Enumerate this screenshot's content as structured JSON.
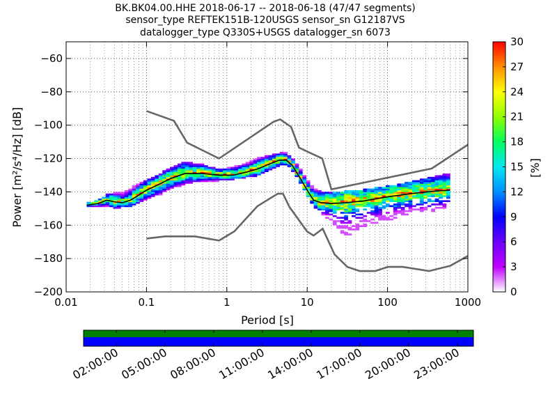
{
  "title": {
    "line1": "BK.BK04.00.HHE   2018-06-17 -- 2018-06-18  (47/47 segments)",
    "line2": "sensor_type REFTEK151B-120USGS sensor_sn G12187VS",
    "line3": "datalogger_type Q330S+USGS datalogger_sn 6073"
  },
  "chart_data": [
    {
      "type": "heatmap",
      "description_kind": "probabilistic power spectral density",
      "xlabel": "Period [s]",
      "ylabel_prefix": "Power ",
      "ylabel_units": "[m²/s⁴/Hz] [dB]",
      "xscale": "log",
      "xlim": [
        0.01,
        1000
      ],
      "ylim": [
        -200,
        -50
      ],
      "xticks": [
        {
          "value": 0.01,
          "label": "0.01"
        },
        {
          "value": 0.1,
          "label": "0.1"
        },
        {
          "value": 1,
          "label": "1"
        },
        {
          "value": 10,
          "label": "10"
        },
        {
          "value": 100,
          "label": "100"
        },
        {
          "value": 1000,
          "label": "1000"
        }
      ],
      "yticks": [
        {
          "value": -60,
          "label": "−60"
        },
        {
          "value": -80,
          "label": "−80"
        },
        {
          "value": -100,
          "label": "−100"
        },
        {
          "value": -120,
          "label": "−120"
        },
        {
          "value": -140,
          "label": "−140"
        },
        {
          "value": -160,
          "label": "−160"
        },
        {
          "value": -180,
          "label": "−180"
        },
        {
          "value": -200,
          "label": "−200"
        }
      ],
      "grid": true,
      "noise_models": {
        "high": {
          "x": [
            0.1,
            0.22,
            0.32,
            0.8,
            3.8,
            4.6,
            6.3,
            7.9,
            15.4,
            20,
            354.8,
            10000
          ],
          "y": [
            -91.5,
            -97.4,
            -110.5,
            -120,
            -98,
            -96.5,
            -101,
            -113.5,
            -120,
            -138.5,
            -126,
            -80
          ]
        },
        "low": {
          "x": [
            0.1,
            0.17,
            0.4,
            0.8,
            1.24,
            2.4,
            4.3,
            5,
            6,
            10,
            12,
            15.6,
            21.9,
            31.6,
            45,
            70,
            101,
            154,
            328,
            600,
            10000
          ],
          "y": [
            -168,
            -166.7,
            -166.7,
            -169.2,
            -163.7,
            -148.6,
            -141.1,
            -141.1,
            -149,
            -163.8,
            -166.2,
            -162.1,
            -177.5,
            -185,
            -187.5,
            -187.5,
            -185,
            -185,
            -187.5,
            -184.4,
            -151.5
          ]
        }
      },
      "mean_curve": {
        "x": [
          0.018,
          0.025,
          0.032,
          0.04,
          0.05,
          0.063,
          0.08,
          0.1,
          0.15,
          0.2,
          0.3,
          0.5,
          0.8,
          1.2,
          1.8,
          2.5,
          3.5,
          4.5,
          5.5,
          6.5,
          8,
          10,
          12,
          15,
          20,
          30,
          50,
          100,
          200,
          400,
          600
        ],
        "y": [
          -148,
          -147,
          -145,
          -146,
          -146.5,
          -145,
          -142,
          -139,
          -135,
          -132,
          -129,
          -129,
          -130,
          -130,
          -128,
          -126,
          -123,
          -121,
          -121,
          -124,
          -131,
          -139,
          -145,
          -146.5,
          -147,
          -146.5,
          -145.5,
          -143,
          -141,
          -139.5,
          -139
        ]
      },
      "heatmap_summary": {
        "x": [
          0.018,
          0.025,
          0.032,
          0.04,
          0.05,
          0.063,
          0.08,
          0.1,
          0.15,
          0.2,
          0.3,
          0.5,
          0.8,
          1.2,
          1.8,
          2.5,
          3.5,
          4.5,
          5.5,
          6.5,
          8,
          10,
          12,
          15,
          20,
          30,
          50,
          100,
          200,
          400,
          600
        ],
        "upper": [
          -147,
          -145,
          -142,
          -141,
          -141,
          -138,
          -135,
          -133,
          -129,
          -126,
          -122,
          -124,
          -127,
          -125,
          -123,
          -120,
          -118,
          -117,
          -117,
          -120,
          -125,
          -133,
          -138,
          -140,
          -141,
          -140,
          -139,
          -137,
          -134,
          -131,
          -129
        ],
        "lower": [
          -149,
          -149,
          -149,
          -150,
          -150,
          -149,
          -147,
          -145,
          -142,
          -139,
          -136,
          -134,
          -134,
          -133,
          -132,
          -131,
          -127,
          -125,
          -124,
          -128,
          -134,
          -143,
          -149,
          -154,
          -158,
          -168,
          -162,
          -158,
          -153,
          -152,
          -150
        ]
      },
      "colorbar": {
        "label": "[%]",
        "range": [
          0,
          30
        ],
        "ticks": [
          {
            "value": 0,
            "label": "0"
          },
          {
            "value": 3,
            "label": "3"
          },
          {
            "value": 6,
            "label": "6"
          },
          {
            "value": 9,
            "label": "9"
          },
          {
            "value": 12,
            "label": "12"
          },
          {
            "value": 15,
            "label": "15"
          },
          {
            "value": 18,
            "label": "18"
          },
          {
            "value": 21,
            "label": "21"
          },
          {
            "value": 24,
            "label": "24"
          },
          {
            "value": 27,
            "label": "27"
          },
          {
            "value": 30,
            "label": "30"
          }
        ],
        "colors": [
          "#ffffff",
          "#c000ff",
          "#6a00ff",
          "#0000ff",
          "#0090ff",
          "#00e8f0",
          "#00ff60",
          "#90ff00",
          "#ffff00",
          "#ff9000",
          "#ff0000"
        ]
      }
    },
    {
      "type": "timeline",
      "description_kind": "data coverage bar",
      "xticks": [
        {
          "label": "02:00:00"
        },
        {
          "label": "05:00:00"
        },
        {
          "label": "08:00:00"
        },
        {
          "label": "11:00:00"
        },
        {
          "label": "14:00:00"
        },
        {
          "label": "17:00:00"
        },
        {
          "label": "20:00:00"
        },
        {
          "label": "23:00:00"
        }
      ],
      "colors": {
        "coverage_top": "#008000",
        "coverage_bottom": "#0000ff"
      }
    }
  ]
}
